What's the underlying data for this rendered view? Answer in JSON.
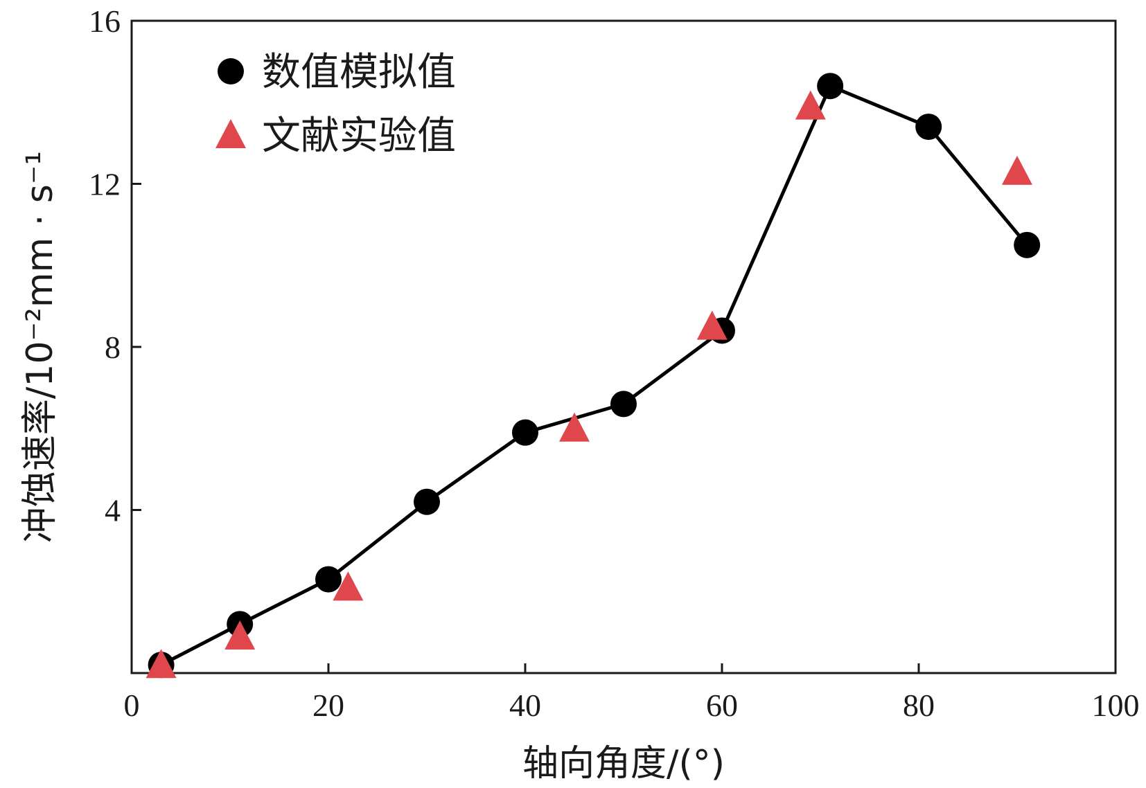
{
  "chart_data": {
    "type": "line",
    "xlabel": "轴向角度/(°)",
    "ylabel": "冲蚀速率/10⁻²mm · s⁻¹",
    "xlim": [
      0,
      100
    ],
    "ylim": [
      0,
      16
    ],
    "xticks": [
      0,
      20,
      40,
      60,
      80,
      100
    ],
    "yticks": [
      4,
      8,
      12,
      16
    ],
    "xtick_labels": [
      "0",
      "20",
      "40",
      "60",
      "80",
      "100"
    ],
    "ytick_labels": [
      "4",
      "8",
      "12",
      "16"
    ],
    "grid": false,
    "legend_position": "top-left",
    "series": [
      {
        "name": "数值模拟值",
        "marker": "circle",
        "line": true,
        "color": "#000000",
        "x": [
          3,
          11,
          20,
          30,
          40,
          50,
          60,
          71,
          81,
          91
        ],
        "y": [
          0.2,
          1.2,
          2.3,
          4.2,
          5.9,
          6.6,
          8.4,
          14.4,
          13.4,
          10.5
        ]
      },
      {
        "name": "文献实验值",
        "marker": "triangle",
        "line": false,
        "color": "#e0474c",
        "x": [
          3,
          11,
          22,
          45,
          59,
          69,
          90
        ],
        "y": [
          0.2,
          0.9,
          2.1,
          6.0,
          8.5,
          13.9,
          12.3
        ]
      }
    ]
  }
}
